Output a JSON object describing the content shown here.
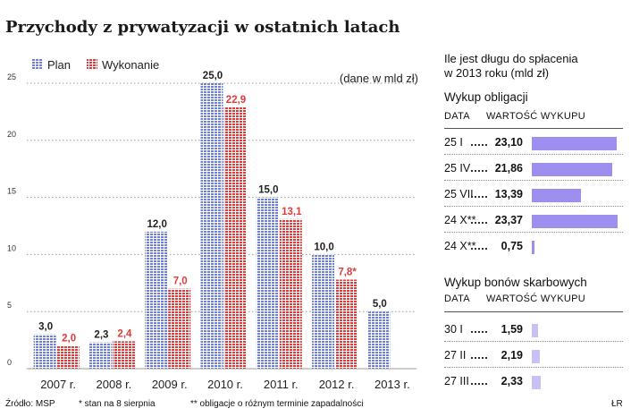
{
  "title": "Przychody z prywatyzacji w ostatnich latach",
  "legend": {
    "plan": "Plan",
    "wykonanie": "Wykonanie"
  },
  "unit_note": "(dane w mld zł)",
  "colors": {
    "plan": "#6f7fe0",
    "wykonanie": "#e03b3b",
    "debt_bar": "#9d8ff0",
    "debt_bar_light": "#c9c1f5"
  },
  "chart_data": {
    "type": "bar",
    "categories": [
      "2007 r.",
      "2008 r.",
      "2009 r.",
      "2010 r.",
      "2011 r.",
      "2012 r.",
      "2013 r."
    ],
    "series": [
      {
        "name": "Plan",
        "values": [
          3.0,
          2.3,
          12.0,
          25.0,
          15.0,
          10.0,
          5.0
        ],
        "labels": [
          "3,0",
          "2,3",
          "12,0",
          "25,0",
          "15,0",
          "10,0",
          "5,0"
        ]
      },
      {
        "name": "Wykonanie",
        "values": [
          2.0,
          2.4,
          7.0,
          22.9,
          13.1,
          7.8,
          null
        ],
        "labels": [
          "2,0",
          "2,4",
          "7,0",
          "22,9",
          "13,1",
          "7,8*",
          ""
        ]
      }
    ],
    "yticks": [
      "0",
      "5",
      "10",
      "15",
      "20",
      "25"
    ],
    "ylim": [
      0,
      25
    ],
    "grid": true,
    "legend_position": "top-left"
  },
  "side": {
    "title_line1": "Ile jest długu do spłacenia",
    "title_line2": "w 2013 roku (mld zł)",
    "bonds": {
      "title": "Wykup obligacji",
      "header_date": "DATA",
      "header_value": "WARTOŚĆ WYKUPU",
      "rows": [
        {
          "date": "25 I",
          "value": "23,10",
          "amount": 23.1
        },
        {
          "date": "25 IV",
          "value": "21,86",
          "amount": 21.86
        },
        {
          "date": "25 VII",
          "value": "13,39",
          "amount": 13.39
        },
        {
          "date": "24 X**",
          "value": "23,37",
          "amount": 23.37
        },
        {
          "date": "24 X**",
          "value": "0,75",
          "amount": 0.75
        }
      ]
    },
    "bills": {
      "title": "Wykup bonów skarbowych",
      "header_date": "DATA",
      "header_value": "WARTOŚĆ WYKUPU",
      "rows": [
        {
          "date": "30 I",
          "value": "1,59",
          "amount": 1.59
        },
        {
          "date": "27 II",
          "value": "2,19",
          "amount": 2.19
        },
        {
          "date": "27 III",
          "value": "2,33",
          "amount": 2.33
        }
      ]
    }
  },
  "footer": {
    "source": "Źródło: MSP",
    "note1": "* stan na 8 sierpnia",
    "note2": "** obligacje o różnym terminie zapadalności",
    "credit": "ŁR"
  }
}
